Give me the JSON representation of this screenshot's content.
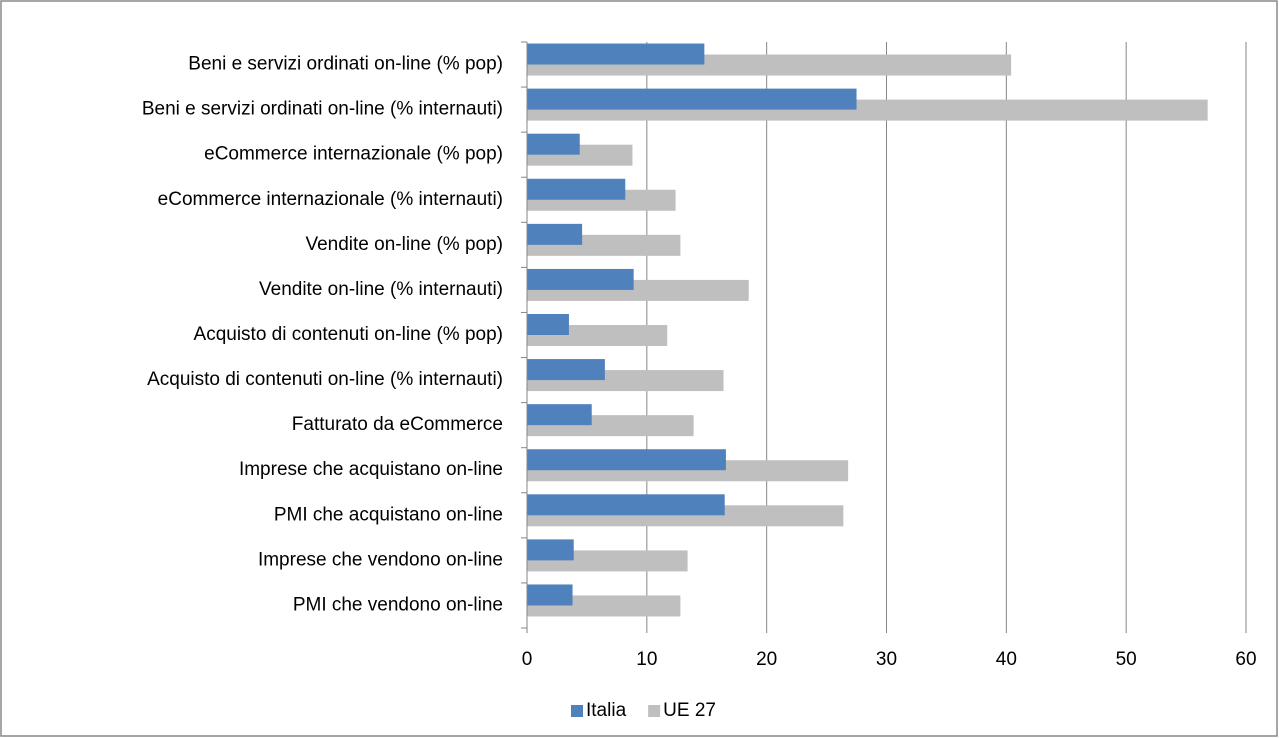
{
  "chart_data": {
    "type": "bar",
    "orientation": "horizontal",
    "categories": [
      "Beni e servizi ordinati on-line (% pop)",
      "Beni e servizi ordinati on-line (% internauti)",
      "eCommerce internazionale (% pop)",
      "eCommerce internazionale (% internauti)",
      "Vendite on-line (% pop)",
      "Vendite on-line (% internauti)",
      "Acquisto di contenuti on-line (% pop)",
      "Acquisto di contenuti on-line (% internauti)",
      "Fatturato da eCommerce",
      "Imprese che acquistano on-line",
      "PMI che acquistano on-line",
      "Imprese che vendono on-line",
      "PMI che vendono on-line"
    ],
    "series": [
      {
        "name": "Italia",
        "color": "#4f81bd",
        "values": [
          14.8,
          27.5,
          4.4,
          8.2,
          4.6,
          8.9,
          3.5,
          6.5,
          5.4,
          16.6,
          16.5,
          3.9,
          3.8
        ]
      },
      {
        "name": "UE 27",
        "color": "#bfbfbf",
        "values": [
          40.4,
          56.8,
          8.8,
          12.4,
          12.8,
          18.5,
          11.7,
          16.4,
          13.9,
          26.8,
          26.4,
          13.4,
          12.8
        ]
      }
    ],
    "xlim": [
      0,
      60
    ],
    "xticks": [
      0,
      10,
      20,
      30,
      40,
      50,
      60
    ],
    "grid": true,
    "legend": "bottom"
  }
}
